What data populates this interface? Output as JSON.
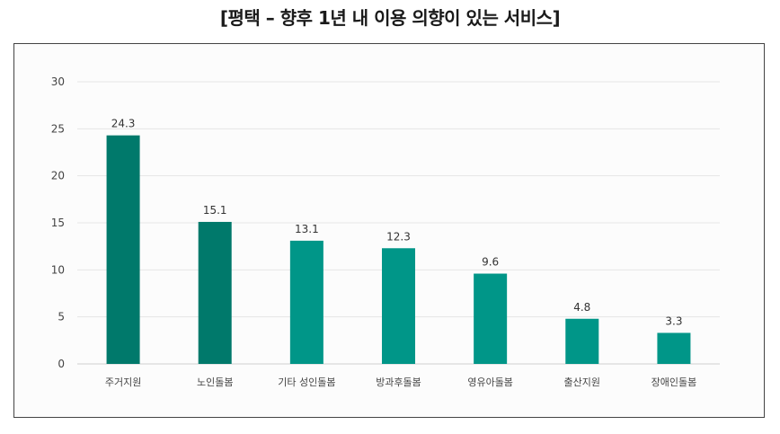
{
  "title": "[평택 – 향후 1년 내 이용 의향이 있는 서비스]",
  "chart_data": {
    "type": "bar",
    "title": "[평택 – 향후 1년 내 이용 의향이 있는 서비스]",
    "categories": [
      "주거지원",
      "노인돌봄",
      "기타 성인돌봄",
      "방과후돌봄",
      "영유아돌봄",
      "출산지원",
      "장애인돌봄"
    ],
    "values": [
      24.3,
      15.1,
      13.1,
      12.3,
      9.6,
      4.8,
      3.3
    ],
    "value_labels": [
      "24.3",
      "15.1",
      "13.1",
      "12.3",
      "9.6",
      "4.8",
      "3.3"
    ],
    "yticks": [
      0,
      5,
      10,
      15,
      20,
      25,
      30
    ],
    "ylim": [
      0,
      30
    ],
    "xlabel": "",
    "ylabel": "",
    "grid": true,
    "colors": [
      "#00796b",
      "#00796b",
      "#009688",
      "#009688",
      "#009688",
      "#009688",
      "#009688"
    ]
  }
}
